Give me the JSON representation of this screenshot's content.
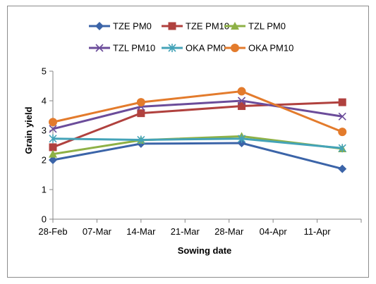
{
  "chart_data": {
    "type": "line",
    "xlabel": "Sowing date",
    "ylabel": "Grain yield",
    "ylim": [
      0,
      5
    ],
    "yticks": [
      0,
      1,
      2,
      3,
      4,
      5
    ],
    "xlim": [
      "2014-02-28",
      "2014-04-18"
    ],
    "xtick_labels": [
      "28-Feb",
      "07-Mar",
      "14-Mar",
      "21-Mar",
      "28-Mar",
      "04-Apr",
      "11-Apr"
    ],
    "xtick_dates": [
      "2014-02-28",
      "2014-03-07",
      "2014-03-14",
      "2014-03-21",
      "2014-03-28",
      "2014-04-04",
      "2014-04-11"
    ],
    "x": [
      "2014-02-28",
      "2014-03-14",
      "2014-03-30",
      "2014-04-15"
    ],
    "legend_position": "top",
    "grid": false,
    "series": [
      {
        "name": "TZE PM0",
        "color": "#3b64a8",
        "marker": "diamond",
        "values": [
          2.0,
          2.55,
          2.57,
          1.7
        ]
      },
      {
        "name": "TZE PM10",
        "color": "#b0413e",
        "marker": "square",
        "values": [
          2.43,
          3.58,
          3.82,
          3.95
        ]
      },
      {
        "name": "TZL PM0",
        "color": "#8eb146",
        "marker": "triangle",
        "values": [
          2.2,
          2.67,
          2.8,
          2.38
        ]
      },
      {
        "name": "TZL PM10",
        "color": "#6b4c9a",
        "marker": "x",
        "values": [
          3.05,
          3.8,
          4.0,
          3.47
        ]
      },
      {
        "name": "OKA PM0",
        "color": "#44a3b8",
        "marker": "star",
        "values": [
          2.72,
          2.68,
          2.72,
          2.4
        ]
      },
      {
        "name": "OKA PM10",
        "color": "#e37b2c",
        "marker": "circle",
        "values": [
          3.28,
          3.95,
          4.32,
          2.95
        ]
      }
    ]
  }
}
